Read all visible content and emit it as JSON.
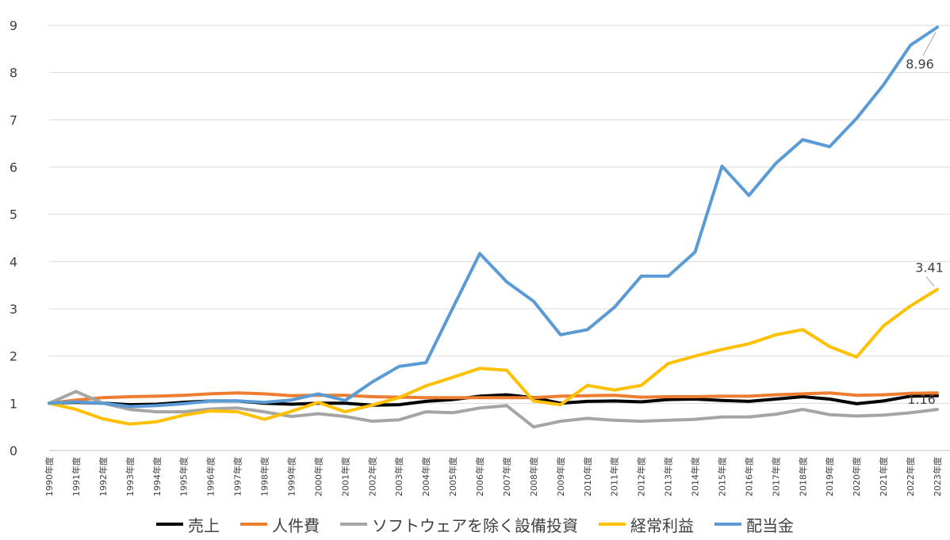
{
  "chart_data": {
    "type": "line",
    "title": "",
    "xlabel": "",
    "ylabel": "",
    "ylim": [
      0,
      9
    ],
    "yticks": [
      "0",
      "1",
      "2",
      "3",
      "4",
      "5",
      "6",
      "7",
      "8",
      "9"
    ],
    "grid": true,
    "legend_position": "bottom",
    "categories": [
      "1990年度",
      "1991年度",
      "1992年度",
      "1993年度",
      "1994年度",
      "1995年度",
      "1996年度",
      "1997年度",
      "1998年度",
      "1999年度",
      "2000年度",
      "2001年度",
      "2002年度",
      "2003年度",
      "2004年度",
      "2005年度",
      "2006年度",
      "2007年度",
      "2008年度",
      "2009年度",
      "2010年度",
      "2011年度",
      "2012年度",
      "2013年度",
      "2014年度",
      "2015年度",
      "2016年度",
      "2017年度",
      "2018年度",
      "2019年度",
      "2020年度",
      "2021年度",
      "2022年度",
      "2023年度"
    ],
    "series": [
      {
        "name": "売上",
        "color": "#000000",
        "values": [
          1.0,
          1.02,
          1.0,
          0.97,
          0.98,
          1.02,
          1.05,
          1.05,
          1.0,
          0.98,
          1.0,
          1.0,
          0.96,
          0.97,
          1.04,
          1.08,
          1.15,
          1.18,
          1.12,
          1.0,
          1.04,
          1.05,
          1.03,
          1.08,
          1.09,
          1.06,
          1.04,
          1.09,
          1.14,
          1.09,
          0.99,
          1.05,
          1.15,
          1.16
        ]
      },
      {
        "name": "人件費",
        "color": "#ED7D31",
        "values": [
          1.0,
          1.07,
          1.12,
          1.14,
          1.15,
          1.17,
          1.2,
          1.22,
          1.2,
          1.16,
          1.17,
          1.17,
          1.14,
          1.13,
          1.12,
          1.12,
          1.12,
          1.12,
          1.12,
          1.15,
          1.16,
          1.17,
          1.13,
          1.14,
          1.14,
          1.15,
          1.15,
          1.18,
          1.2,
          1.22,
          1.17,
          1.18,
          1.21,
          1.22
        ]
      },
      {
        "name": "ソフトウェアを除く設備投資",
        "color": "#A5A5A5",
        "values": [
          1.0,
          1.25,
          1.0,
          0.87,
          0.82,
          0.82,
          0.88,
          0.9,
          0.82,
          0.72,
          0.78,
          0.72,
          0.62,
          0.65,
          0.82,
          0.8,
          0.9,
          0.95,
          0.5,
          0.62,
          0.68,
          0.64,
          0.62,
          0.64,
          0.66,
          0.71,
          0.71,
          0.77,
          0.87,
          0.76,
          0.73,
          0.75,
          0.8,
          0.87
        ]
      },
      {
        "name": "経常利益",
        "color": "#FFC000",
        "values": [
          1.0,
          0.87,
          0.67,
          0.56,
          0.61,
          0.75,
          0.84,
          0.82,
          0.66,
          0.83,
          1.02,
          0.82,
          0.96,
          1.12,
          1.37,
          1.55,
          1.74,
          1.7,
          1.05,
          0.97,
          1.38,
          1.28,
          1.38,
          1.84,
          2.0,
          2.14,
          2.26,
          2.45,
          2.56,
          2.2,
          1.98,
          2.64,
          3.06,
          3.41
        ]
      },
      {
        "name": "配当金",
        "color": "#5B9BD5",
        "values": [
          1.0,
          1.03,
          1.0,
          0.93,
          0.95,
          0.99,
          1.05,
          1.05,
          1.02,
          1.07,
          1.2,
          1.06,
          1.45,
          1.78,
          1.86,
          3.02,
          4.17,
          3.57,
          3.16,
          2.45,
          2.56,
          3.03,
          3.69,
          3.69,
          4.2,
          6.02,
          5.4,
          6.08,
          6.58,
          6.43,
          7.03,
          7.74,
          8.58,
          8.96
        ]
      }
    ],
    "annotations": [
      {
        "text": "8.96",
        "series": "配当金",
        "category": "2023年度"
      },
      {
        "text": "3.41",
        "series": "経常利益",
        "category": "2023年度"
      },
      {
        "text": "1.16",
        "series": "売上",
        "category": "2023年度"
      }
    ]
  }
}
